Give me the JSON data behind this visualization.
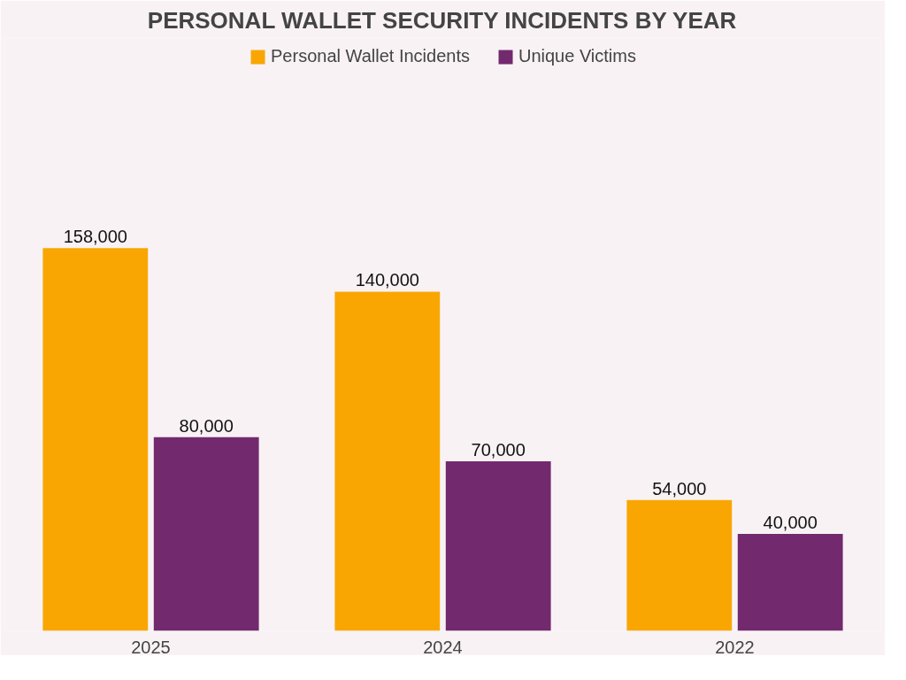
{
  "chart_data": {
    "type": "bar",
    "title": "PERSONAL WALLET SECURITY INCIDENTS BY YEAR",
    "categories": [
      "2025",
      "2024",
      "2022"
    ],
    "series": [
      {
        "name": "Personal Wallet Incidents",
        "color": "#f9a602",
        "values": [
          158000,
          140000,
          54000
        ],
        "value_labels": [
          "158,000",
          "140,000",
          "54,000"
        ]
      },
      {
        "name": "Unique Victims",
        "color": "#73296e",
        "values": [
          80000,
          70000,
          40000
        ],
        "value_labels": [
          "80,000",
          "70,000",
          "40,000"
        ]
      }
    ],
    "legend": "top",
    "grid": false,
    "tick_labels": "x"
  }
}
